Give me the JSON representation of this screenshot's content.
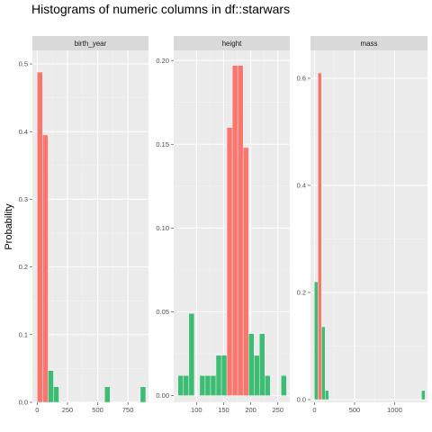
{
  "title": "Histograms of numeric columns in df::starwars",
  "ylabel": "Probability",
  "colors": {
    "panel_bg": "#ebebeb",
    "strip_bg": "#d9d9d9",
    "grid_major": "#ffffff",
    "grid_minor": "#f5f5f5",
    "red": "#f8766d",
    "green": "#3ebc73",
    "tick": "#4d4d4d"
  },
  "chart_data": [
    {
      "type": "bar",
      "panel": "birth_year",
      "xlim": [
        -40,
        920
      ],
      "ylim": [
        0,
        0.52
      ],
      "xticks": [
        0,
        250,
        500,
        750
      ],
      "yticks": [
        0.0,
        0.1,
        0.2,
        0.3,
        0.4,
        0.5
      ],
      "ytick_labels": [
        "0.0",
        "0.1",
        "0.2",
        "0.3",
        "0.4",
        "0.5"
      ],
      "binwidth": 45,
      "series": [
        {
          "color_key": "red",
          "bins": [
            {
              "x": 22,
              "y": 0.488
            },
            {
              "x": 67,
              "y": 0.395
            }
          ]
        },
        {
          "color_key": "green",
          "bins": [
            {
              "x": 112,
              "y": 0.047
            },
            {
              "x": 157,
              "y": 0.023
            },
            {
              "x": 580,
              "y": 0.023
            },
            {
              "x": 875,
              "y": 0.023
            }
          ]
        }
      ]
    },
    {
      "type": "bar",
      "panel": "height",
      "xlim": [
        58,
        272
      ],
      "ylim": [
        -0.004,
        0.206
      ],
      "xticks": [
        100,
        150,
        200,
        250
      ],
      "yticks": [
        0.0,
        0.05,
        0.1,
        0.15,
        0.2
      ],
      "ytick_labels": [
        "0.00",
        "0.05",
        "0.10",
        "0.15",
        "0.20"
      ],
      "binwidth": 10,
      "series": [
        {
          "color_key": "green",
          "bins": [
            {
              "x": 71,
              "y": 0.012
            },
            {
              "x": 81,
              "y": 0.012
            },
            {
              "x": 91,
              "y": 0.049
            },
            {
              "x": 111,
              "y": 0.012
            },
            {
              "x": 121,
              "y": 0.012
            },
            {
              "x": 131,
              "y": 0.012
            },
            {
              "x": 141,
              "y": 0.024
            },
            {
              "x": 151,
              "y": 0.024
            },
            {
              "x": 201,
              "y": 0.037
            },
            {
              "x": 211,
              "y": 0.024
            },
            {
              "x": 221,
              "y": 0.037
            },
            {
              "x": 231,
              "y": 0.012
            },
            {
              "x": 261,
              "y": 0.012
            }
          ]
        },
        {
          "color_key": "red",
          "bins": [
            {
              "x": 161,
              "y": 0.16
            },
            {
              "x": 171,
              "y": 0.197
            },
            {
              "x": 181,
              "y": 0.197
            },
            {
              "x": 191,
              "y": 0.148
            }
          ]
        }
      ]
    },
    {
      "type": "bar",
      "panel": "mass",
      "xlim": [
        -50,
        1410
      ],
      "ylim": [
        -0.005,
        0.652
      ],
      "xticks": [
        0,
        500,
        1000
      ],
      "yticks": [
        0.0,
        0.2,
        0.4,
        0.6
      ],
      "ytick_labels": [
        "0.0",
        "0.2",
        "0.4",
        "0.6"
      ],
      "binwidth": 45,
      "series": [
        {
          "color_key": "green",
          "bins": [
            {
              "x": 20,
              "y": 0.22
            },
            {
              "x": 110,
              "y": 0.136
            },
            {
              "x": 155,
              "y": 0.017
            },
            {
              "x": 1358,
              "y": 0.017
            }
          ]
        },
        {
          "color_key": "red",
          "bins": [
            {
              "x": 65,
              "y": 0.61
            }
          ]
        }
      ]
    }
  ]
}
